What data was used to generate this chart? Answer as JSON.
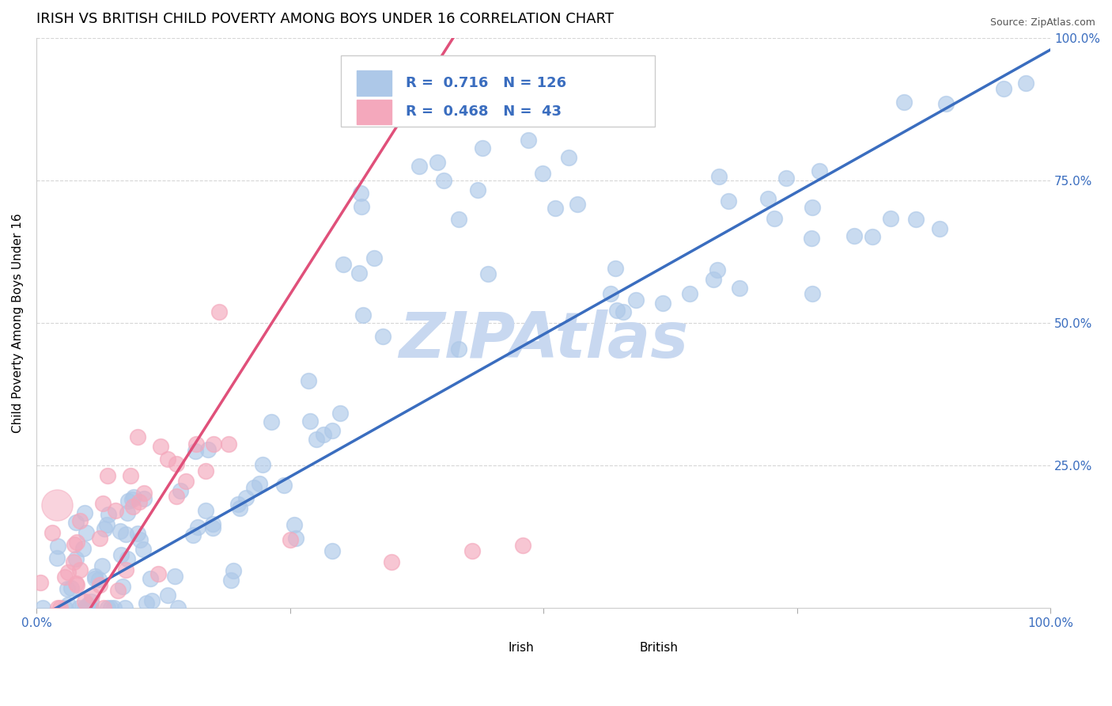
{
  "title": "IRISH VS BRITISH CHILD POVERTY AMONG BOYS UNDER 16 CORRELATION CHART",
  "source": "Source: ZipAtlas.com",
  "ylabel": "Child Poverty Among Boys Under 16",
  "xlim": [
    0,
    1
  ],
  "ylim": [
    0,
    1
  ],
  "xticks": [
    0.0,
    0.25,
    0.5,
    0.75,
    1.0
  ],
  "xticklabels": [
    "0.0%",
    "",
    "",
    "",
    "100.0%"
  ],
  "ytick_vals": [
    0.25,
    0.5,
    0.75,
    1.0
  ],
  "ytick_labels": [
    "25.0%",
    "50.0%",
    "75.0%",
    "100.0%"
  ],
  "irish_color": "#adc8e8",
  "british_color": "#f4a8bc",
  "irish_line_color": "#3a6dbf",
  "british_line_color": "#e0507a",
  "irish_R": 0.716,
  "irish_N": 126,
  "british_R": 0.468,
  "british_N": 43,
  "legend_color": "#3a6dbf",
  "watermark": "ZIPAtlas",
  "watermark_color": "#c8d8f0",
  "background_color": "#ffffff",
  "grid_color": "#cccccc",
  "title_fontsize": 13,
  "axis_fontsize": 11,
  "tick_fontsize": 11,
  "legend_fontsize": 13
}
